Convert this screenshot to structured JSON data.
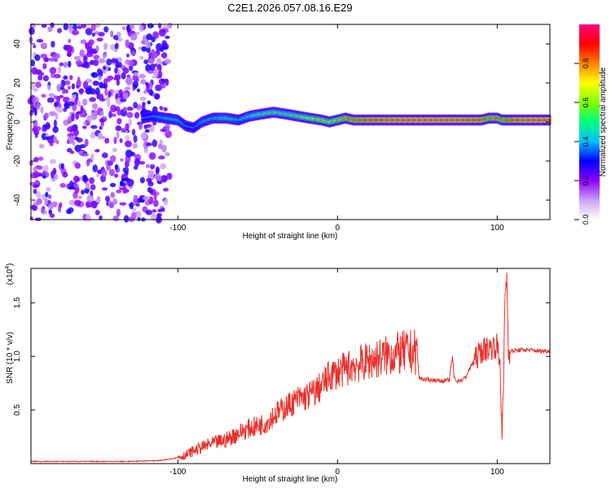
{
  "figure_title": "C2E1.2026.057.08.16.E29",
  "colorbar": {
    "label": "Normalized spectral amplitude",
    "range": [
      0,
      1
    ],
    "ticks": [
      "0.0",
      "0.2",
      "0.4",
      "0.6",
      "0.8"
    ],
    "tick_values": [
      0.0,
      0.2,
      0.4,
      0.6,
      0.8
    ],
    "colors": [
      "#ffffff",
      "#c8a0f0",
      "#9000ff",
      "#0000ff",
      "#00c0ff",
      "#00ff80",
      "#80ff00",
      "#ffff00",
      "#ff8000",
      "#ff0000",
      "#ff0080"
    ]
  },
  "chart_data": [
    {
      "type": "heatmap",
      "title": "",
      "xlabel": "Height of straight line (km)",
      "ylabel": "Frequency (Hz)",
      "xlim": [
        -192,
        133
      ],
      "ylim": [
        -50,
        50
      ],
      "x_ticks": [
        "-100",
        "0",
        "100"
      ],
      "x_tick_values": [
        -100,
        0,
        100
      ],
      "y_ticks": [
        "-40",
        "-20",
        "0",
        "20",
        "40"
      ],
      "y_tick_values": [
        -40,
        -20,
        0,
        20,
        40
      ],
      "noise_region_x": [
        -192,
        -105
      ],
      "ridge": {
        "x": [
          -122,
          -115,
          -108,
          -100,
          -95,
          -90,
          -85,
          -78,
          -70,
          -62,
          -55,
          -48,
          -40,
          -32,
          -25,
          -18,
          -10,
          -5,
          0,
          5,
          10,
          20,
          40,
          60,
          80,
          90,
          95,
          100,
          103,
          110,
          120,
          133
        ],
        "frequency": [
          2,
          3,
          2,
          1,
          -2,
          -3,
          0,
          2,
          2,
          1,
          3,
          4,
          5,
          4,
          3,
          2,
          1,
          0,
          1,
          2,
          1,
          1,
          1,
          1,
          1,
          1,
          2,
          2,
          1,
          1,
          1,
          1
        ],
        "amplitude": [
          0.4,
          0.45,
          0.5,
          0.5,
          0.45,
          0.4,
          0.5,
          0.5,
          0.55,
          0.5,
          0.55,
          0.6,
          0.6,
          0.6,
          0.65,
          0.7,
          0.75,
          0.7,
          0.75,
          0.8,
          0.85,
          0.9,
          0.95,
          0.95,
          0.95,
          0.9,
          0.8,
          0.85,
          0.8,
          0.9,
          0.95,
          0.95
        ]
      }
    },
    {
      "type": "line",
      "title": "",
      "xlabel": "Height of straight line (km)",
      "ylabel": "SNR (10 * v/v)",
      "y_scale_label": "(x10",
      "y_scale_exponent": "4",
      "xlim": [
        -192,
        133
      ],
      "ylim": [
        0,
        1.82
      ],
      "x_ticks": [
        "-100",
        "0",
        "100"
      ],
      "x_tick_values": [
        -100,
        0,
        100
      ],
      "y_ticks": [
        "0.5",
        "1.0",
        "1.5"
      ],
      "y_tick_values": [
        0.5,
        1.0,
        1.5
      ],
      "series": [
        {
          "name": "SNR",
          "color": "#e8312b",
          "x": [
            -192,
            -170,
            -150,
            -130,
            -110,
            -102,
            -95,
            -90,
            -85,
            -80,
            -75,
            -70,
            -65,
            -60,
            -55,
            -50,
            -45,
            -40,
            -35,
            -30,
            -25,
            -20,
            -15,
            -10,
            -5,
            0,
            5,
            10,
            15,
            20,
            25,
            30,
            35,
            40,
            45,
            50,
            51,
            55,
            60,
            65,
            70,
            71,
            72,
            73,
            75,
            78,
            80,
            85,
            90,
            95,
            100,
            102,
            103,
            104,
            105,
            106,
            107,
            110,
            115,
            120,
            125,
            133
          ],
          "values": [
            0.02,
            0.02,
            0.02,
            0.02,
            0.03,
            0.05,
            0.08,
            0.12,
            0.15,
            0.18,
            0.2,
            0.22,
            0.26,
            0.3,
            0.33,
            0.35,
            0.38,
            0.45,
            0.5,
            0.55,
            0.6,
            0.62,
            0.66,
            0.72,
            0.82,
            0.85,
            0.88,
            0.92,
            0.93,
            0.96,
            0.98,
            1.0,
            1.02,
            1.03,
            1.04,
            1.04,
            0.8,
            0.78,
            0.78,
            0.77,
            0.78,
            0.9,
            1.0,
            0.8,
            0.77,
            0.78,
            0.8,
            0.95,
            1.05,
            1.08,
            1.1,
            0.9,
            0.2,
            0.8,
            1.6,
            1.75,
            1.05,
            1.05,
            1.06,
            1.06,
            1.05,
            1.05
          ]
        }
      ]
    }
  ]
}
